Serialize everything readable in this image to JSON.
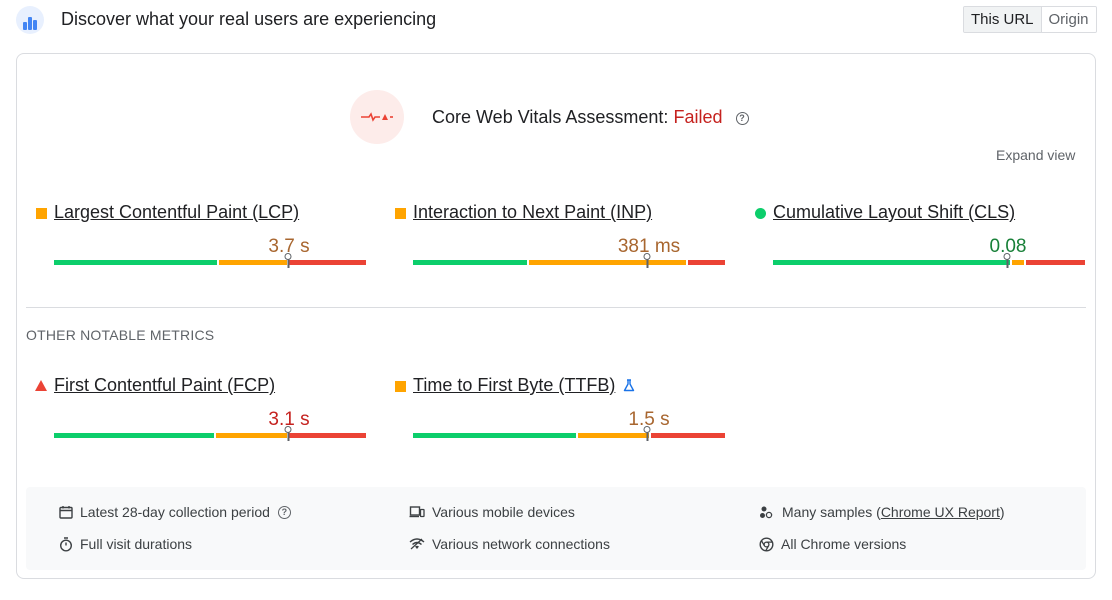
{
  "header": {
    "logo_icon": "crux-logo-icon",
    "title": "Discover what your real users are experiencing",
    "toggle": {
      "this_url": "This URL",
      "origin": "Origin",
      "active": "This URL"
    }
  },
  "assessment": {
    "icon": "failed-waveform-icon",
    "label": "Core Web Vitals Assessment:",
    "status": "Failed",
    "status_color": "#c5221f",
    "help_icon": "help-circle-icon",
    "expand_label": "Expand view"
  },
  "core_metrics": [
    {
      "label": "Largest Contentful Paint (LCP)",
      "value": "3.7 s",
      "status": "needs-improvement",
      "status_icon": "orange-square-icon",
      "distribution": {
        "good": 53,
        "needs_improvement": 22,
        "poor": 25
      },
      "marker": 0.75
    },
    {
      "label": "Interaction to Next Paint (INP)",
      "value": "381 ms",
      "status": "needs-improvement",
      "status_icon": "orange-square-icon",
      "distribution": {
        "good": 37,
        "needs_improvement": 51,
        "poor": 12
      },
      "marker": 0.75
    },
    {
      "label": "Cumulative Layout Shift (CLS)",
      "value": "0.08",
      "status": "good",
      "status_icon": "green-circle-icon",
      "distribution": {
        "good": 77,
        "needs_improvement": 4,
        "poor": 19
      },
      "marker": 0.75
    }
  ],
  "other_section": {
    "title": "OTHER NOTABLE METRICS",
    "metrics": [
      {
        "label": "First Contentful Paint (FCP)",
        "value": "3.1 s",
        "status": "poor",
        "status_icon": "red-triangle-icon",
        "distribution": {
          "good": 52,
          "needs_improvement": 23,
          "poor": 25
        },
        "marker": 0.75
      },
      {
        "label": "Time to First Byte (TTFB)",
        "value": "1.5 s",
        "status": "needs-improvement",
        "status_icon": "orange-square-icon",
        "experimental_icon": "flask-icon",
        "distribution": {
          "good": 53,
          "needs_improvement": 23,
          "poor": 24
        },
        "marker": 0.75
      }
    ]
  },
  "footer": {
    "collection_period": "Latest 28-day collection period",
    "devices": "Various mobile devices",
    "samples_prefix": "Many samples (",
    "samples_link": "Chrome UX Report",
    "samples_suffix": ")",
    "durations": "Full visit durations",
    "network": "Various network connections",
    "chrome": "All Chrome versions"
  },
  "colors": {
    "good": "#0cce6b",
    "needs_improvement": "#ffa400",
    "poor": "#eb4335",
    "ni_text": "#a8662f",
    "good_text": "#188038",
    "poor_text": "#c5221f"
  }
}
